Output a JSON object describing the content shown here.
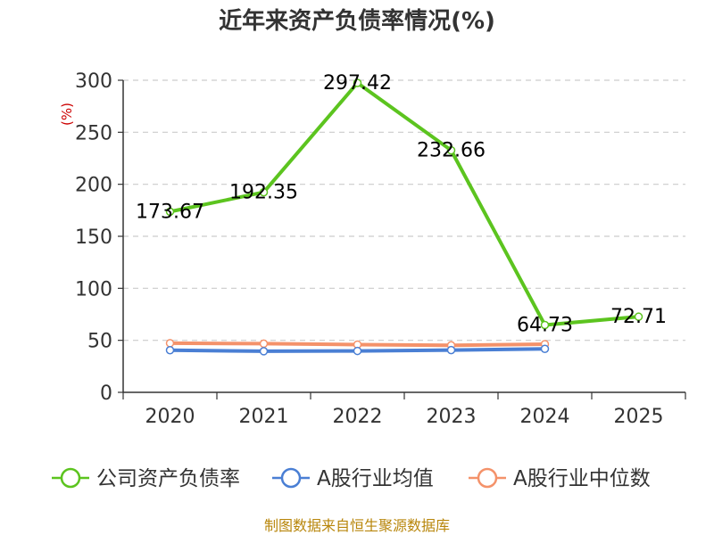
{
  "chart_data": {
    "type": "line",
    "title": "近年来资产负债率情况(%)",
    "unit_label": "(%)",
    "categories": [
      "2020",
      "2021",
      "2022",
      "2023",
      "2024",
      "2025"
    ],
    "y_ticks": [
      "0",
      "50",
      "100",
      "150",
      "200",
      "250",
      "300"
    ],
    "ylim": [
      0,
      300
    ],
    "grid": true,
    "legend_position": "bottom",
    "series": [
      {
        "name": "公司资产负债率",
        "color": "#5cc41f",
        "values": [
          173.67,
          192.35,
          297.42,
          232.66,
          64.73,
          72.71
        ],
        "labels": [
          "173.67",
          "192.35",
          "297.42",
          "232.66",
          "64.73",
          "72.71"
        ]
      },
      {
        "name": "A股行业均值",
        "color": "#4a7fd4",
        "values": [
          40.5,
          39.5,
          39.8,
          40.6,
          41.8,
          null
        ]
      },
      {
        "name": "A股行业中位数",
        "color": "#f4926a",
        "values": [
          47.2,
          46.8,
          45.9,
          45.2,
          46.3,
          null
        ]
      }
    ]
  },
  "footer": "制图数据来自恒生聚源数据库"
}
